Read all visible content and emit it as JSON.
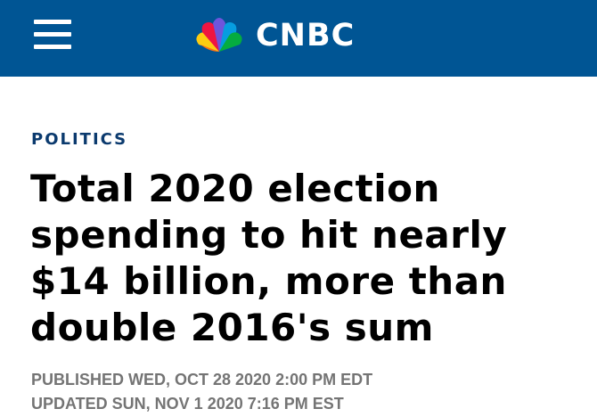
{
  "header": {
    "logo_text": "CNBC",
    "menu_icon": "hamburger-menu-icon",
    "background_color": "#005594"
  },
  "article": {
    "category": "POLITICS",
    "category_color": "#0b3a6e",
    "headline": "Total 2020 election spending to hit nearly $14 billion, more than double 2016's sum",
    "published": "PUBLISHED WED, OCT 28 2020 2:00 PM EDT",
    "updated": "UPDATED SUN, NOV 1 2020 7:16 PM EST"
  }
}
